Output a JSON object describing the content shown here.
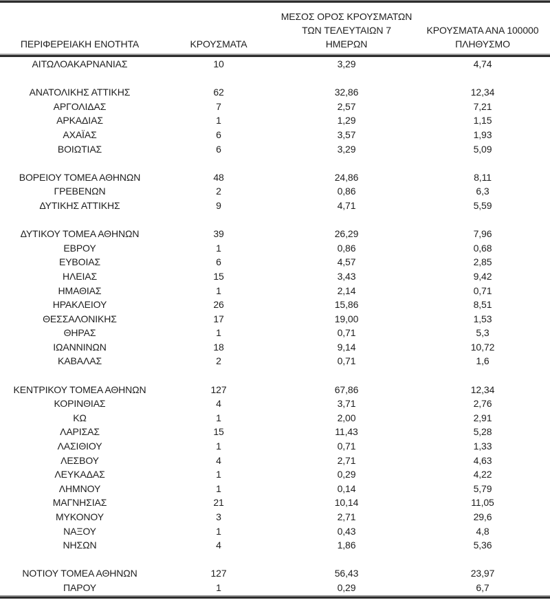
{
  "colors": {
    "text": "#1d1d1d",
    "rule_dark": "#2d2d2d",
    "rule_light": "#9a9a9a",
    "background": "#ffffff"
  },
  "table": {
    "header": {
      "col1": "ΠΕΡΙΦΕΡΕΙΑΚΗ ΕΝΟΤΗΤΑ",
      "col2": "ΚΡΟΥΣΜΑΤΑ",
      "col3_line1": "ΜΕΣΟΣ ΟΡΟΣ ΚΡΟΥΣΜΑΤΩΝ",
      "col3_line2": "ΤΩΝ ΤΕΛΕΥΤΑΙΩΝ 7",
      "col3_line3": "ΗΜΕΡΩΝ",
      "col4_line1": "ΚΡΟΥΣΜΑΤΑ ΑΝΑ 100000",
      "col4_line2": "ΠΛΗΘΥΣΜΟ"
    },
    "rows": [
      {
        "region": "ΑΙΤΩΛΟΑΚΑΡΝΑΝΙΑΣ",
        "cases": "10",
        "avg7": "3,29",
        "per100k": "4,74",
        "spacer_before": false
      },
      {
        "region": "ΑΝΑΤΟΛΙΚΗΣ ΑΤΤΙΚΗΣ",
        "cases": "62",
        "avg7": "32,86",
        "per100k": "12,34",
        "spacer_before": true
      },
      {
        "region": "ΑΡΓΟΛΙΔΑΣ",
        "cases": "7",
        "avg7": "2,57",
        "per100k": "7,21",
        "spacer_before": false
      },
      {
        "region": "ΑΡΚΑΔΙΑΣ",
        "cases": "1",
        "avg7": "1,29",
        "per100k": "1,15",
        "spacer_before": false
      },
      {
        "region": "ΑΧΑΪΑΣ",
        "cases": "6",
        "avg7": "3,57",
        "per100k": "1,93",
        "spacer_before": false
      },
      {
        "region": "ΒΟΙΩΤΙΑΣ",
        "cases": "6",
        "avg7": "3,29",
        "per100k": "5,09",
        "spacer_before": false
      },
      {
        "region": "ΒΟΡΕΙΟΥ ΤΟΜΕΑ ΑΘΗΝΩΝ",
        "cases": "48",
        "avg7": "24,86",
        "per100k": "8,11",
        "spacer_before": true
      },
      {
        "region": "ΓΡΕΒΕΝΩΝ",
        "cases": "2",
        "avg7": "0,86",
        "per100k": "6,3",
        "spacer_before": false
      },
      {
        "region": "ΔΥΤΙΚΗΣ ΑΤΤΙΚΗΣ",
        "cases": "9",
        "avg7": "4,71",
        "per100k": "5,59",
        "spacer_before": false
      },
      {
        "region": "ΔΥΤΙΚΟΥ ΤΟΜΕΑ ΑΘΗΝΩΝ",
        "cases": "39",
        "avg7": "26,29",
        "per100k": "7,96",
        "spacer_before": true
      },
      {
        "region": "ΕΒΡΟΥ",
        "cases": "1",
        "avg7": "0,86",
        "per100k": "0,68",
        "spacer_before": false
      },
      {
        "region": "ΕΥΒΟΙΑΣ",
        "cases": "6",
        "avg7": "4,57",
        "per100k": "2,85",
        "spacer_before": false
      },
      {
        "region": "ΗΛΕΙΑΣ",
        "cases": "15",
        "avg7": "3,43",
        "per100k": "9,42",
        "spacer_before": false
      },
      {
        "region": "ΗΜΑΘΙΑΣ",
        "cases": "1",
        "avg7": "2,14",
        "per100k": "0,71",
        "spacer_before": false
      },
      {
        "region": "ΗΡΑΚΛΕΙΟΥ",
        "cases": "26",
        "avg7": "15,86",
        "per100k": "8,51",
        "spacer_before": false
      },
      {
        "region": "ΘΕΣΣΑΛΟΝΙΚΗΣ",
        "cases": "17",
        "avg7": "19,00",
        "per100k": "1,53",
        "spacer_before": false
      },
      {
        "region": "ΘΗΡΑΣ",
        "cases": "1",
        "avg7": "0,71",
        "per100k": "5,3",
        "spacer_before": false
      },
      {
        "region": "ΙΩΑΝΝΙΝΩΝ",
        "cases": "18",
        "avg7": "9,14",
        "per100k": "10,72",
        "spacer_before": false
      },
      {
        "region": "ΚΑΒΑΛΑΣ",
        "cases": "2",
        "avg7": "0,71",
        "per100k": "1,6",
        "spacer_before": false
      },
      {
        "region": "ΚΕΝΤΡΙΚΟΥ ΤΟΜΕΑ ΑΘΗΝΩΝ",
        "cases": "127",
        "avg7": "67,86",
        "per100k": "12,34",
        "spacer_before": true
      },
      {
        "region": "ΚΟΡΙΝΘΙΑΣ",
        "cases": "4",
        "avg7": "3,71",
        "per100k": "2,76",
        "spacer_before": false
      },
      {
        "region": "ΚΩ",
        "cases": "1",
        "avg7": "2,00",
        "per100k": "2,91",
        "spacer_before": false
      },
      {
        "region": "ΛΑΡΙΣΑΣ",
        "cases": "15",
        "avg7": "11,43",
        "per100k": "5,28",
        "spacer_before": false
      },
      {
        "region": "ΛΑΣΙΘΙΟΥ",
        "cases": "1",
        "avg7": "0,71",
        "per100k": "1,33",
        "spacer_before": false
      },
      {
        "region": "ΛΕΣΒΟΥ",
        "cases": "4",
        "avg7": "2,71",
        "per100k": "4,63",
        "spacer_before": false
      },
      {
        "region": "ΛΕΥΚΑΔΑΣ",
        "cases": "1",
        "avg7": "0,29",
        "per100k": "4,22",
        "spacer_before": false
      },
      {
        "region": "ΛΗΜΝΟΥ",
        "cases": "1",
        "avg7": "0,14",
        "per100k": "5,79",
        "spacer_before": false
      },
      {
        "region": "ΜΑΓΝΗΣΙΑΣ",
        "cases": "21",
        "avg7": "10,14",
        "per100k": "11,05",
        "spacer_before": false
      },
      {
        "region": "ΜΥΚΟΝΟΥ",
        "cases": "3",
        "avg7": "2,71",
        "per100k": "29,6",
        "spacer_before": false
      },
      {
        "region": "ΝΑΞΟΥ",
        "cases": "1",
        "avg7": "0,43",
        "per100k": "4,8",
        "spacer_before": false
      },
      {
        "region": "ΝΗΣΩΝ",
        "cases": "4",
        "avg7": "1,86",
        "per100k": "5,36",
        "spacer_before": false
      },
      {
        "region": "ΝΟΤΙΟΥ ΤΟΜΕΑ ΑΘΗΝΩΝ",
        "cases": "127",
        "avg7": "56,43",
        "per100k": "23,97",
        "spacer_before": true
      },
      {
        "region": "ΠΑΡΟΥ",
        "cases": "1",
        "avg7": "0,29",
        "per100k": "6,7",
        "spacer_before": false
      }
    ]
  }
}
